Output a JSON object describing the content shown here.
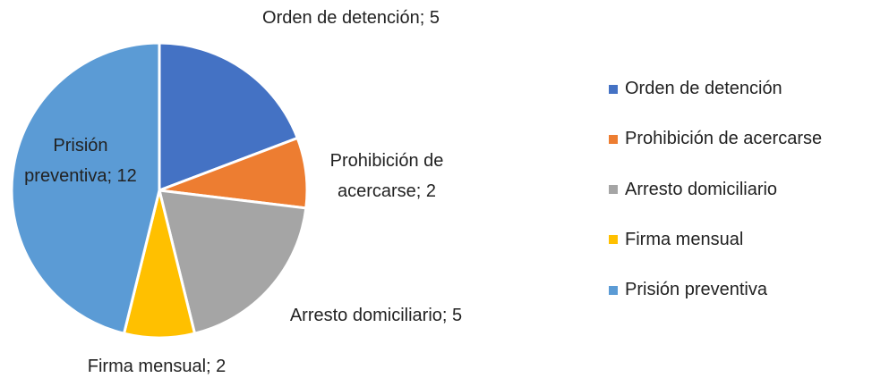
{
  "chart_data": {
    "type": "pie",
    "categories": [
      "Orden de detención",
      "Prohibición de acercarse",
      "Arresto domiciliario",
      "Firma mensual",
      "Prisión preventiva"
    ],
    "values": [
      5,
      2,
      5,
      2,
      12
    ],
    "value_labels": [
      "Orden de detención; 5",
      "Prohibición de acercarse; 2",
      "Arresto domiciliario; 5",
      "Firma mensual; 2",
      "Prisión preventiva; 12"
    ],
    "colors": [
      "#4472c4",
      "#ed7d31",
      "#a5a5a5",
      "#ffc000",
      "#5b9bd5"
    ],
    "legend": "right"
  }
}
